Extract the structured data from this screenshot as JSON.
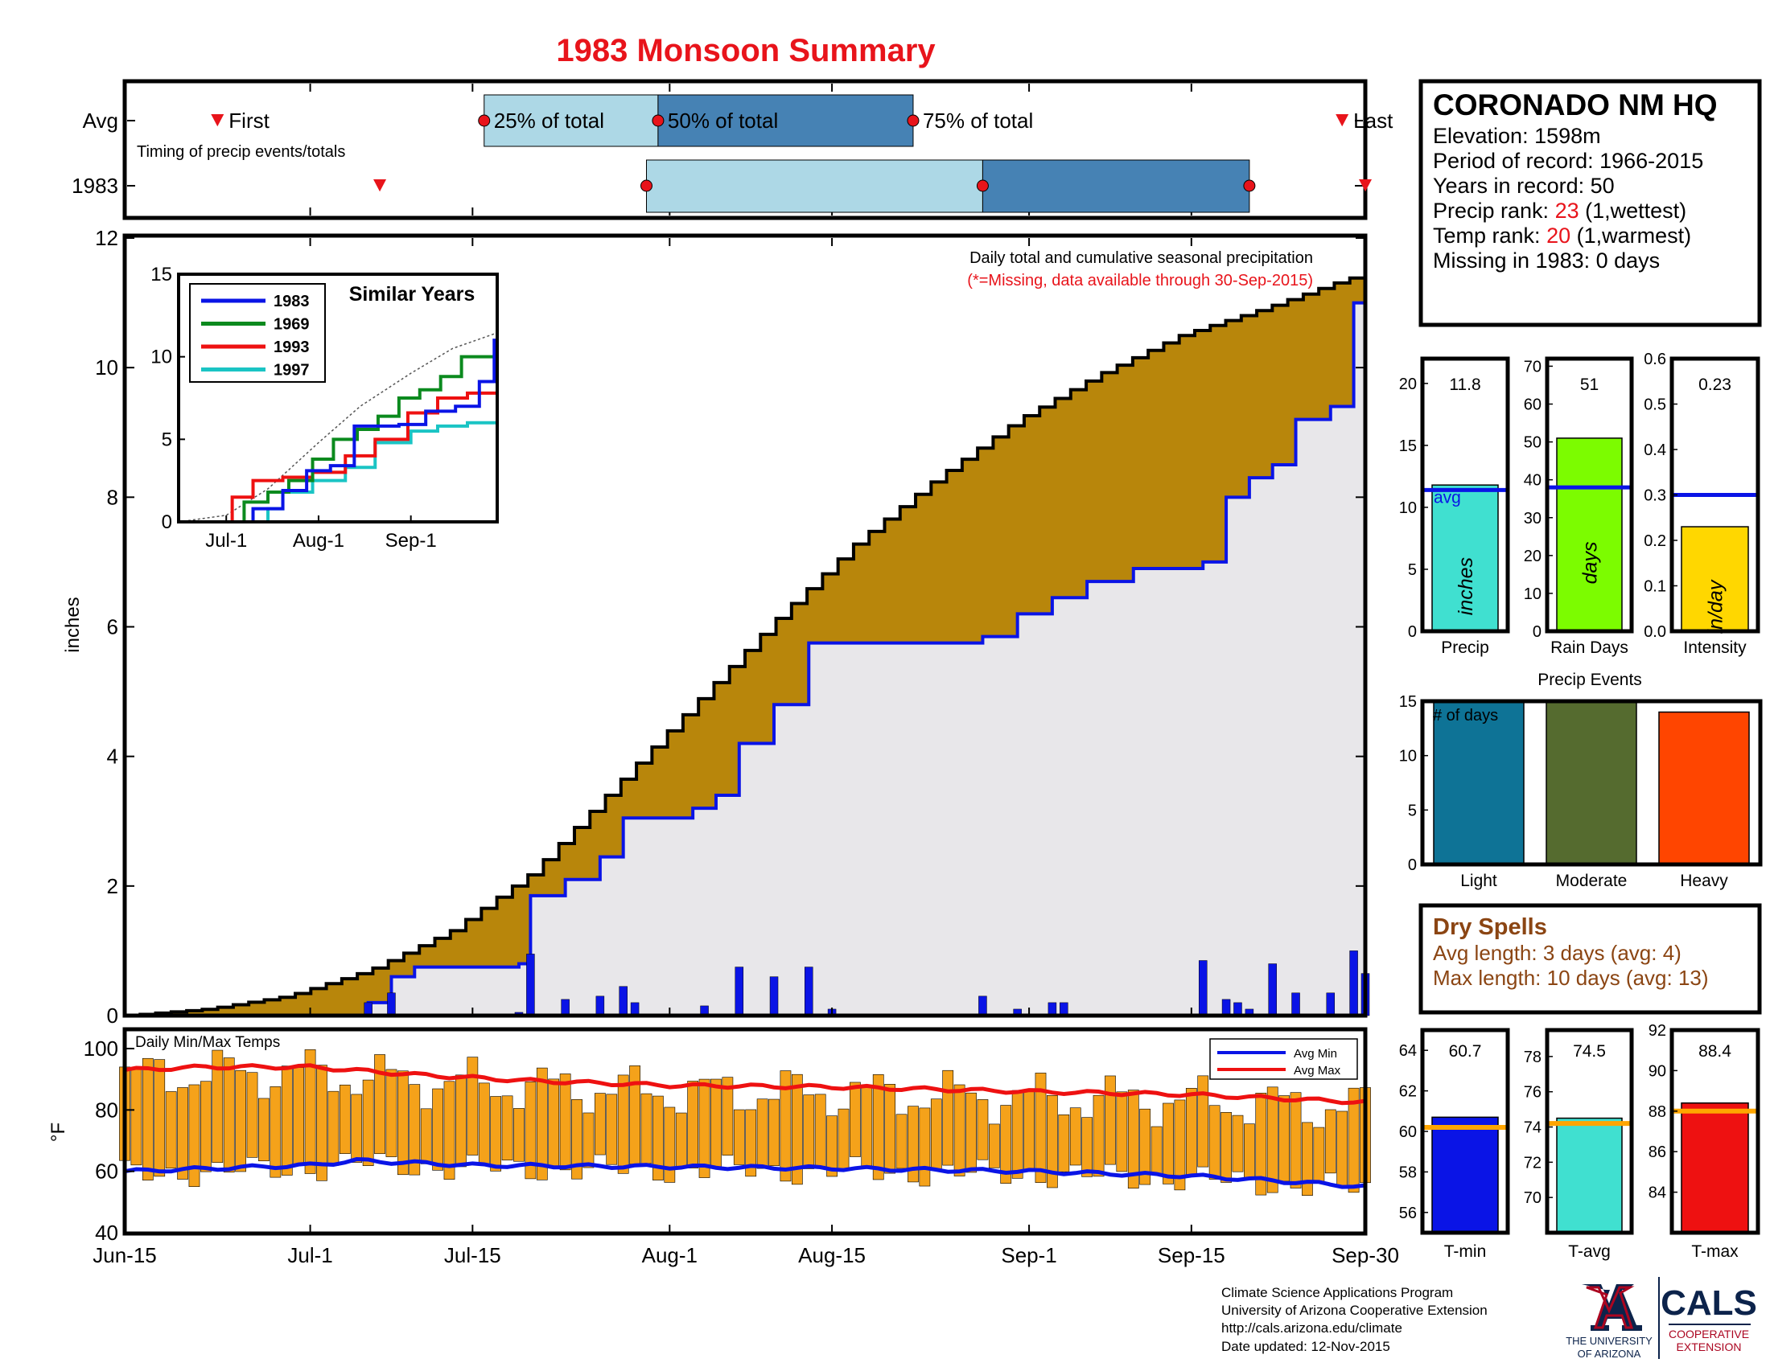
{
  "title": "1983 Monsoon Summary",
  "colors": {
    "title": "#e8141b",
    "gold": "#b8860b",
    "gray_fill": "#e8e7ea",
    "blue": "#0a14e6",
    "light_box": "#add8e6",
    "dark_box": "#4682b4",
    "marker": "#e8141b",
    "temp_bar": "#f5a21a",
    "max_line": "#ee1111",
    "precip": "#40e0d0",
    "raindays": "#7cfc00",
    "intensity": "#ffd700",
    "light": "#0e7396",
    "moderate": "#556b2f",
    "heavy": "#ff4500",
    "dry": "#8b4513",
    "tavg_line": "#ffa500",
    "ua_blue": "#0c234b",
    "ua_red": "#ab0520"
  },
  "timing": {
    "rows": [
      "Avg",
      "1983"
    ],
    "caption": "Timing of precip events/totals",
    "first_label": "First",
    "last_label": "Last",
    "p25_label": "25% of total",
    "p50_label": "50% of total",
    "p75_label": "75% of total",
    "avg": {
      "first": "2015-06-23",
      "p25": "2015-07-16",
      "p50": "2015-07-31",
      "p75": "2015-08-22",
      "last": "2015-09-28"
    },
    "y1983": {
      "first": "2015-07-07",
      "p25": "2015-07-30",
      "p50": "2015-08-28",
      "p75": "2015-09-20",
      "last": "2015-10-01"
    }
  },
  "station": {
    "name": "CORONADO NM HQ",
    "elevation": "Elevation: 1598m",
    "period": "Period of record: 1966-2015",
    "years": "Years in record: 50",
    "precip_rank_label": "Precip rank: ",
    "precip_rank": "23",
    "precip_rank_note": " (1,wettest)",
    "temp_rank_label": "Temp rank: ",
    "temp_rank": "20",
    "temp_rank_note": " (1,warmest)",
    "missing": "Missing in 1983: 0 days"
  },
  "main_chart": {
    "ylabel": "inches",
    "note1": "Daily total and cumulative seasonal precipitation",
    "note2": "(*=Missing, data available through 30-Sep-2015)"
  },
  "inset": {
    "title": "Similar Years",
    "legend": [
      "1983",
      "1969",
      "1993",
      "1997"
    ]
  },
  "temps_chart": {
    "title": "Daily Min/Max Temps",
    "ylabel": "°F",
    "legend_min": "Avg Min",
    "legend_max": "Avg Max"
  },
  "x_labels": [
    "Jun-15",
    "Jul-1",
    "Jul-15",
    "Aug-1",
    "Aug-15",
    "Sep-1",
    "Sep-15",
    "Sep-30"
  ],
  "summary_bars": [
    {
      "label": "Precip",
      "value_text": "11.8",
      "unit": "inches",
      "avg_label": "avg"
    },
    {
      "label": "Rain Days",
      "value_text": "51",
      "unit": "days"
    },
    {
      "label": "Intensity",
      "value_text": "0.23",
      "unit": "in/day"
    }
  ],
  "events": {
    "title": "Precip Events",
    "inner_label": "# of days",
    "labels": [
      "Light",
      "Moderate",
      "Heavy"
    ]
  },
  "dry": {
    "title": "Dry Spells",
    "avg": "Avg length: 3 days (avg: 4)",
    "max": "Max length: 10 days (avg: 13)"
  },
  "temp_bars": [
    {
      "label": "T-min",
      "value_text": "60.7"
    },
    {
      "label": "T-avg",
      "value_text": "74.5"
    },
    {
      "label": "T-max",
      "value_text": "88.4"
    }
  ],
  "footer": {
    "line1": "Climate Science Applications Program",
    "line2": "University of Arizona Cooperative Extension",
    "line3": "http://cals.arizona.edu/climate",
    "line4": " Date updated: 12-Nov-2015",
    "ua_line1": "THE UNIVERSITY",
    "ua_line2": "OF ARIZONA",
    "cals": "CALS",
    "cals_line1": "COOPERATIVE",
    "cals_line2": "EXTENSION"
  },
  "chart_data": [
    {
      "type": "area",
      "title": "",
      "ylabel": "inches",
      "ylim": [
        0,
        12
      ],
      "x_range": [
        "2015-06-15",
        "2015-09-30"
      ],
      "series": [
        {
          "name": "avg cumulative",
          "x": [
            "2015-06-15",
            "2015-06-22",
            "2015-06-29",
            "2015-07-06",
            "2015-07-13",
            "2015-07-20",
            "2015-07-27",
            "2015-08-03",
            "2015-08-10",
            "2015-08-17",
            "2015-08-24",
            "2015-08-31",
            "2015-09-07",
            "2015-09-14",
            "2015-09-21",
            "2015-09-28",
            "2015-09-30"
          ],
          "y": [
            0,
            0.1,
            0.3,
            0.7,
            1.3,
            2.2,
            3.5,
            4.8,
            6.1,
            7.3,
            8.3,
            9.2,
            9.9,
            10.5,
            10.9,
            11.35,
            11.45
          ]
        },
        {
          "name": "1983 cumulative",
          "x": [
            "2015-06-15",
            "2015-07-03",
            "2015-07-06",
            "2015-07-08",
            "2015-07-10",
            "2015-07-19",
            "2015-07-20",
            "2015-07-23",
            "2015-07-26",
            "2015-07-28",
            "2015-08-03",
            "2015-08-05",
            "2015-08-07",
            "2015-08-10",
            "2015-08-13",
            "2015-08-28",
            "2015-08-31",
            "2015-09-03",
            "2015-09-06",
            "2015-09-10",
            "2015-09-16",
            "2015-09-18",
            "2015-09-20",
            "2015-09-22",
            "2015-09-24",
            "2015-09-27",
            "2015-09-29",
            "2015-09-30"
          ],
          "y": [
            0,
            0,
            0.2,
            0.6,
            0.75,
            0.8,
            1.85,
            2.1,
            2.45,
            3.05,
            3.2,
            3.4,
            4.2,
            4.8,
            5.75,
            5.85,
            6.2,
            6.45,
            6.7,
            6.9,
            7.0,
            8.0,
            8.3,
            8.5,
            9.2,
            9.4,
            11.0,
            11.8
          ]
        }
      ],
      "daily_bars": {
        "x": [
          "2015-07-06",
          "2015-07-08",
          "2015-07-19",
          "2015-07-20",
          "2015-07-23",
          "2015-07-26",
          "2015-07-28",
          "2015-07-29",
          "2015-08-04",
          "2015-08-07",
          "2015-08-10",
          "2015-08-13",
          "2015-08-15",
          "2015-08-28",
          "2015-08-31",
          "2015-09-03",
          "2015-09-04",
          "2015-09-16",
          "2015-09-18",
          "2015-09-19",
          "2015-09-20",
          "2015-09-22",
          "2015-09-24",
          "2015-09-27",
          "2015-09-29",
          "2015-09-30"
        ],
        "y": [
          0.2,
          0.35,
          0.05,
          0.95,
          0.25,
          0.3,
          0.45,
          0.2,
          0.15,
          0.75,
          0.6,
          0.75,
          0.1,
          0.3,
          0.1,
          0.2,
          0.2,
          0.85,
          0.25,
          0.2,
          0.1,
          0.8,
          0.35,
          0.35,
          1.0,
          0.65
        ]
      }
    },
    {
      "type": "line",
      "title": "Similar Years",
      "xlim": [
        "2015-06-15",
        "2015-09-30"
      ],
      "ylim": [
        0,
        15
      ],
      "series": [
        {
          "name": "1983",
          "x": [
            "2015-06-15",
            "2015-07-03",
            "2015-07-10",
            "2015-07-20",
            "2015-07-28",
            "2015-08-05",
            "2015-08-13",
            "2015-08-28",
            "2015-09-06",
            "2015-09-16",
            "2015-09-24",
            "2015-09-29",
            "2015-09-30"
          ],
          "y": [
            0,
            0,
            0.8,
            1.9,
            3.1,
            3.4,
            5.8,
            5.9,
            6.7,
            7.0,
            8.5,
            11.0,
            11.8
          ]
        },
        {
          "name": "1969",
          "x": [
            "2015-06-15",
            "2015-07-01",
            "2015-07-07",
            "2015-07-15",
            "2015-07-22",
            "2015-07-30",
            "2015-08-06",
            "2015-08-14",
            "2015-08-21",
            "2015-08-28",
            "2015-09-04",
            "2015-09-11",
            "2015-09-18",
            "2015-09-30"
          ],
          "y": [
            0,
            0,
            1.2,
            1.8,
            2.5,
            3.8,
            5.0,
            5.6,
            6.4,
            7.5,
            8.0,
            8.8,
            10.0,
            10.0
          ]
        },
        {
          "name": "1993",
          "x": [
            "2015-06-15",
            "2015-06-29",
            "2015-07-03",
            "2015-07-10",
            "2015-07-20",
            "2015-07-30",
            "2015-08-10",
            "2015-08-20",
            "2015-08-31",
            "2015-09-10",
            "2015-09-20",
            "2015-09-30"
          ],
          "y": [
            0,
            0,
            1.5,
            2.5,
            2.7,
            3.0,
            4.0,
            5.0,
            6.6,
            7.5,
            7.8,
            7.8
          ]
        },
        {
          "name": "1997",
          "x": [
            "2015-06-15",
            "2015-07-05",
            "2015-07-15",
            "2015-07-20",
            "2015-07-30",
            "2015-08-10",
            "2015-08-20",
            "2015-09-01",
            "2015-09-10",
            "2015-09-20",
            "2015-09-30"
          ],
          "y": [
            0,
            0,
            0.8,
            1.8,
            2.5,
            3.3,
            4.8,
            5.5,
            5.8,
            6.0,
            6.2
          ]
        },
        {
          "name": "avg",
          "x": [
            "2015-06-15",
            "2015-07-01",
            "2015-07-15",
            "2015-08-01",
            "2015-08-15",
            "2015-09-01",
            "2015-09-15",
            "2015-09-30"
          ],
          "y": [
            0,
            0.4,
            2.0,
            4.8,
            7.0,
            9.0,
            10.5,
            11.45
          ]
        }
      ]
    },
    {
      "type": "bar",
      "title": "Daily Min/Max Temps",
      "ylabel": "°F",
      "ylim": [
        40,
        100
      ],
      "x_range": [
        "2015-06-15",
        "2015-09-30"
      ],
      "series": [
        {
          "name": "Avg Min",
          "x": [
            "2015-06-15",
            "2015-07-01",
            "2015-07-05",
            "2015-07-15",
            "2015-08-01",
            "2015-08-15",
            "2015-09-01",
            "2015-09-15",
            "2015-09-22",
            "2015-09-30"
          ],
          "y": [
            60,
            62,
            63.5,
            62,
            61.5,
            61,
            60,
            58.5,
            57,
            55
          ]
        },
        {
          "name": "Avg Max",
          "x": [
            "2015-06-15",
            "2015-06-22",
            "2015-07-01",
            "2015-07-10",
            "2015-07-20",
            "2015-08-01",
            "2015-08-15",
            "2015-09-01",
            "2015-09-15",
            "2015-09-30"
          ],
          "y": [
            93,
            94,
            94,
            91.5,
            89.5,
            88,
            87.5,
            86,
            85,
            82.5
          ]
        }
      ]
    },
    {
      "type": "bar",
      "title": "",
      "categories": [
        "Precip"
      ],
      "values": [
        11.8
      ],
      "avg": 11.4,
      "ylim": [
        0,
        22
      ],
      "ylabel": "inches"
    },
    {
      "type": "bar",
      "title": "",
      "categories": [
        "Rain Days"
      ],
      "values": [
        51
      ],
      "avg": 38,
      "ylim": [
        0,
        72
      ],
      "ylabel": "days"
    },
    {
      "type": "bar",
      "title": "",
      "categories": [
        "Intensity"
      ],
      "values": [
        0.23
      ],
      "avg": 0.3,
      "ylim": [
        0,
        0.6
      ],
      "ylabel": "in/day"
    },
    {
      "type": "bar",
      "title": "Precip Events",
      "categories": [
        "Light",
        "Moderate",
        "Heavy"
      ],
      "values": [
        15,
        15,
        14
      ],
      "ylim": [
        0,
        15
      ],
      "ylabel": "# of days"
    },
    {
      "type": "bar",
      "title": "",
      "categories": [
        "T-min"
      ],
      "values": [
        60.7
      ],
      "avg": 60.2,
      "ylim": [
        55,
        65
      ]
    },
    {
      "type": "bar",
      "title": "",
      "categories": [
        "T-avg"
      ],
      "values": [
        74.5
      ],
      "avg": 74.2,
      "ylim": [
        68,
        79.5
      ]
    },
    {
      "type": "bar",
      "title": "",
      "categories": [
        "T-max"
      ],
      "values": [
        88.4
      ],
      "avg": 88.0,
      "ylim": [
        82,
        92
      ]
    }
  ]
}
